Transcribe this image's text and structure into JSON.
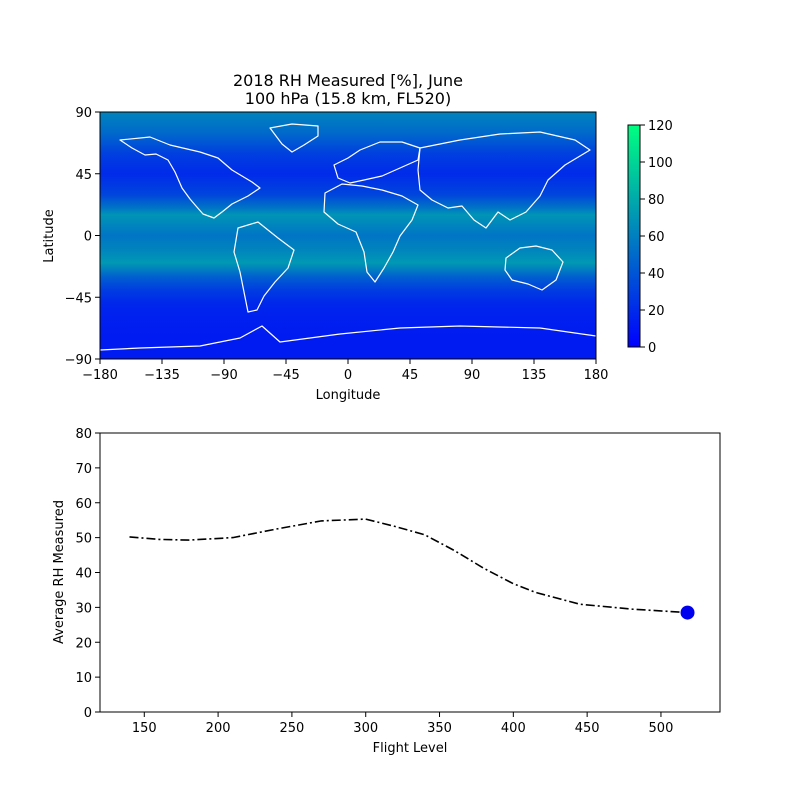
{
  "chart_data": [
    {
      "type": "heatmap",
      "title": "2018 RH Measured [%], June",
      "subtitle": "100 hPa (15.8 km, FL520)",
      "xlabel": "Longitude",
      "ylabel": "Latitude",
      "xlim": [
        -180,
        180
      ],
      "ylim": [
        -90,
        90
      ],
      "xticks": [
        "−180",
        "−135",
        "−90",
        "−45",
        "0",
        "45",
        "90",
        "135",
        "180"
      ],
      "yticks": [
        "90",
        "45",
        "0",
        "−45",
        "−90"
      ],
      "colorbar": {
        "min": 0,
        "max": 120,
        "ticks": [
          "120",
          "100",
          "80",
          "60",
          "40",
          "20",
          "0"
        ],
        "colormap": "winter",
        "color_low": "#0000ff",
        "color_high": "#00ff80"
      },
      "lat_profile": {
        "lat": [
          -90,
          -75,
          -60,
          -50,
          -40,
          -30,
          -20,
          -10,
          0,
          10,
          15,
          20,
          30,
          45,
          60,
          75,
          90
        ],
        "rh": [
          12,
          12,
          15,
          18,
          28,
          45,
          72,
          62,
          55,
          65,
          70,
          55,
          32,
          20,
          30,
          50,
          62
        ]
      },
      "coastline_color": "#ffffff"
    },
    {
      "type": "line",
      "xlabel": "Flight Level",
      "ylabel": "Average RH Measured",
      "xlim": [
        120,
        540
      ],
      "ylim": [
        0,
        80
      ],
      "xticks": [
        "150",
        "200",
        "250",
        "300",
        "350",
        "400",
        "450",
        "500"
      ],
      "yticks": [
        "0",
        "10",
        "20",
        "30",
        "40",
        "50",
        "60",
        "70",
        "80"
      ],
      "line_style": "dashdot",
      "line_color": "#000000",
      "x": [
        140,
        160,
        180,
        210,
        240,
        270,
        300,
        320,
        340,
        360,
        380,
        400,
        415,
        445,
        480,
        518
      ],
      "y": [
        50.2,
        49.5,
        49.3,
        50.0,
        52.5,
        54.8,
        55.3,
        53.2,
        50.8,
        46.3,
        41.2,
        36.8,
        34.3,
        30.9,
        29.5,
        28.5
      ],
      "highlight": {
        "x": 518,
        "y": 28.5,
        "color": "#0000ee"
      }
    }
  ]
}
